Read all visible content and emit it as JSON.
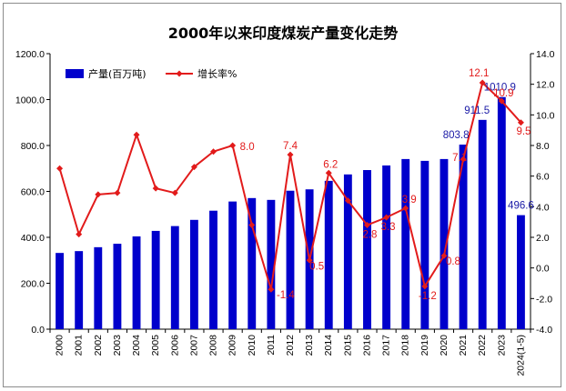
{
  "chart_data": {
    "type": "bar+line",
    "title": "2000年以来印度煤炭产量变化走势",
    "categories": [
      "2000",
      "2001",
      "2002",
      "2003",
      "2004",
      "2005",
      "2006",
      "2007",
      "2008",
      "2009",
      "2010",
      "2011",
      "2012",
      "2013",
      "2014",
      "2015",
      "2016",
      "2017",
      "2018",
      "2019",
      "2020",
      "2021",
      "2022",
      "2023",
      "2024(1-5)"
    ],
    "series": [
      {
        "name": "产量(百万吨)",
        "type": "bar",
        "axis": "left",
        "color": "#0000cc",
        "values": [
          332,
          340,
          357,
          372,
          404,
          428,
          449,
          476,
          516,
          556,
          571,
          563,
          603,
          609,
          646,
          674,
          693,
          713,
          741,
          733,
          741,
          803.8,
          911.5,
          1010.9,
          496.6
        ]
      },
      {
        "name": "增长率%",
        "type": "line",
        "axis": "right",
        "color": "#e21b1b",
        "values": [
          6.5,
          2.2,
          4.8,
          4.9,
          8.7,
          5.2,
          4.9,
          6.6,
          7.6,
          8.0,
          2.8,
          -1.4,
          7.4,
          0.5,
          6.2,
          4.4,
          2.8,
          3.3,
          3.9,
          -1.2,
          0.8,
          7.1,
          12.1,
          10.9,
          9.5
        ]
      }
    ],
    "bar_labels": [
      {
        "index": 21,
        "text": "803.8"
      },
      {
        "index": 22,
        "text": "911.5"
      },
      {
        "index": 23,
        "text": "1010.9"
      },
      {
        "index": 24,
        "text": "496.6"
      }
    ],
    "line_labels": [
      {
        "index": 9,
        "text": "8.0"
      },
      {
        "index": 11,
        "text": "-1.4"
      },
      {
        "index": 12,
        "text": "7.4"
      },
      {
        "index": 13,
        "text": "0.5"
      },
      {
        "index": 14,
        "text": "6.2"
      },
      {
        "index": 16,
        "text": "2.8"
      },
      {
        "index": 17,
        "text": "3.3"
      },
      {
        "index": 18,
        "text": "3.9"
      },
      {
        "index": 19,
        "text": "-1.2"
      },
      {
        "index": 20,
        "text": "0.8"
      },
      {
        "index": 21,
        "text": "7.1"
      },
      {
        "index": 22,
        "text": "12.1"
      },
      {
        "index": 23,
        "text": "10.9"
      },
      {
        "index": 24,
        "text": "9.5"
      }
    ],
    "y_left": {
      "min": 0,
      "max": 1200,
      "step": 200,
      "tick_labels": [
        "0.0",
        "200.0",
        "400.0",
        "600.0",
        "800.0",
        "1000.0",
        "1200.0"
      ]
    },
    "y_right": {
      "min": -4,
      "max": 14,
      "step": 2,
      "tick_labels": [
        "-4.0",
        "-2.0",
        "0.0",
        "2.0",
        "4.0",
        "6.0",
        "8.0",
        "10.0",
        "12.0",
        "14.0"
      ]
    },
    "xlabel": "",
    "ylabel": "",
    "legend": {
      "placement": "top-left",
      "entries": [
        "产量(百万吨)",
        "增长率%"
      ]
    },
    "grid": false
  }
}
